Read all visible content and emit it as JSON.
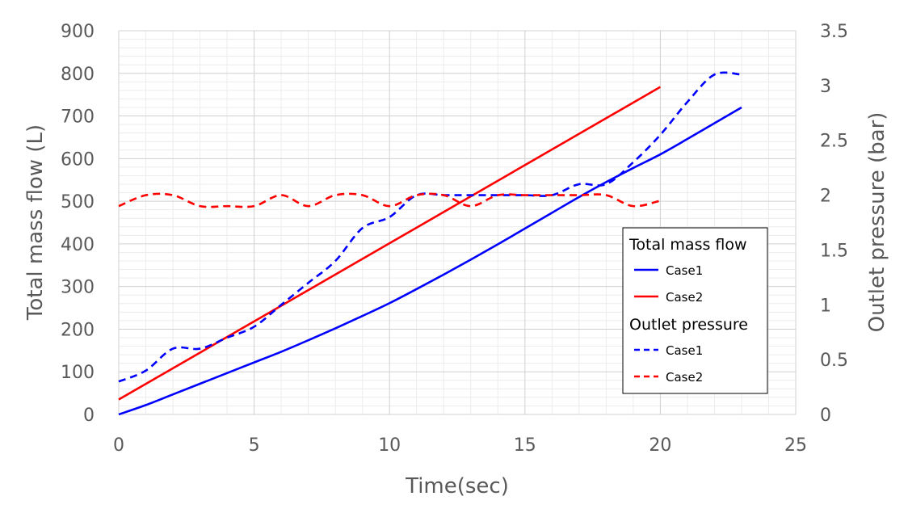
{
  "chart_data": {
    "type": "line",
    "title": "",
    "xlabel": "Time(sec)",
    "ylabel": "Total mass flow (L)",
    "y2label": "Outlet pressure (bar)",
    "xlim": [
      0,
      25
    ],
    "ylim": [
      0,
      900
    ],
    "y2lim": [
      0,
      3.5
    ],
    "xticks": [
      "0",
      "5",
      "10",
      "15",
      "20",
      "25"
    ],
    "yticks": [
      "0",
      "100",
      "200",
      "300",
      "400",
      "500",
      "600",
      "700",
      "800",
      "900"
    ],
    "y2ticks": [
      "0",
      "0.5",
      "1",
      "1.5",
      "2",
      "2.5",
      "3",
      "3.5"
    ],
    "grid": true,
    "legend_position": "right",
    "series": [
      {
        "group": "Total mass flow",
        "name": "Case1",
        "axis": "left",
        "style": "solid",
        "color": "#0000ff",
        "x": [
          0,
          1,
          2,
          3,
          4,
          5,
          6,
          7,
          8,
          9,
          10,
          11,
          12,
          13,
          14,
          15,
          16,
          17,
          18,
          19,
          20,
          21,
          22,
          23
        ],
        "y": [
          0,
          22,
          47,
          72,
          97,
          122,
          147,
          174,
          202,
          231,
          261,
          294,
          328,
          363,
          399,
          436,
          473,
          510,
          545,
          578,
          610,
          646,
          683,
          720
        ]
      },
      {
        "group": "Total mass flow",
        "name": "Case2",
        "axis": "left",
        "style": "solid",
        "color": "#ff0000",
        "x": [
          0,
          20
        ],
        "y": [
          35,
          768
        ]
      },
      {
        "group": "Outlet pressure",
        "name": "Case1",
        "axis": "right",
        "style": "dashed",
        "color": "#0000ff",
        "x": [
          0,
          1,
          2,
          3,
          4,
          5,
          6,
          7,
          8,
          9,
          10,
          11,
          12,
          13,
          14,
          15,
          16,
          17,
          18,
          19,
          20,
          21,
          22,
          23
        ],
        "y": [
          0.3,
          0.4,
          0.6,
          0.6,
          0.7,
          0.8,
          1.0,
          1.2,
          1.4,
          1.7,
          1.8,
          2.0,
          2.0,
          2.0,
          2.0,
          2.0,
          2.0,
          2.1,
          2.1,
          2.3,
          2.55,
          2.85,
          3.1,
          3.1
        ]
      },
      {
        "group": "Outlet pressure",
        "name": "Case2",
        "axis": "right",
        "style": "dashed",
        "color": "#ff0000",
        "x": [
          0,
          1,
          2,
          3,
          4,
          5,
          6,
          7,
          8,
          9,
          10,
          11,
          12,
          13,
          14,
          15,
          16,
          17,
          18,
          19,
          20
        ],
        "y": [
          1.9,
          2.0,
          2.0,
          1.9,
          1.9,
          1.9,
          2.0,
          1.9,
          2.0,
          2.0,
          1.9,
          2.0,
          2.0,
          1.9,
          2.0,
          2.0,
          2.0,
          2.0,
          2.0,
          1.9,
          1.95
        ]
      }
    ]
  }
}
